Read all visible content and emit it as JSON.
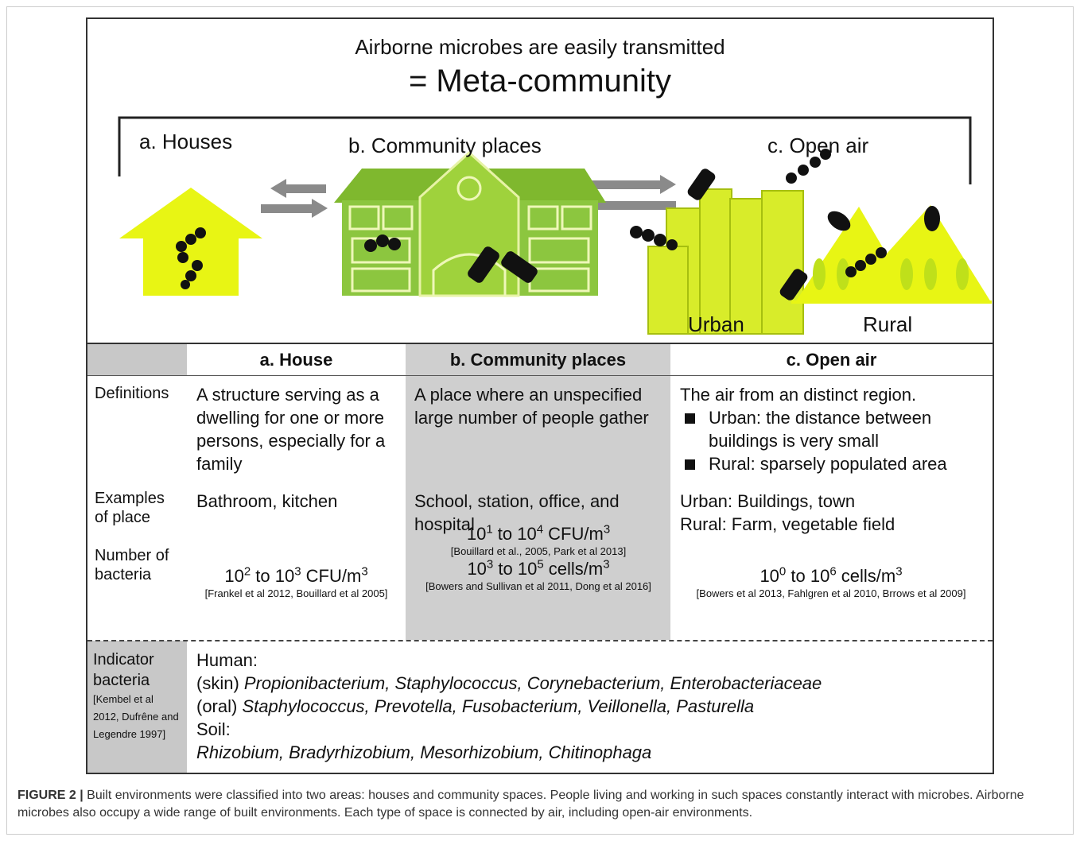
{
  "figure": {
    "title": "Airborne microbes are easily transmitted",
    "subtitle": "= Meta-community",
    "zones": [
      "a. Houses",
      "b. Community places",
      "c. Open air"
    ],
    "open_air_subzones": [
      "Urban",
      "Rural"
    ]
  },
  "table": {
    "header": [
      "a. House",
      "b. Community places",
      "c. Open air"
    ],
    "definitions": {
      "label": "Definitions",
      "house": "A structure serving as a dwelling for one or more persons, especially for a family",
      "community": "A place where an unspecified large number of people gather",
      "open_air": {
        "text": "The air from an distinct region.",
        "bullets": [
          "Urban: the distance between buildings is very small",
          "Rural: sparsely populated area"
        ]
      }
    },
    "examples": {
      "label": "Examples of place",
      "house": "Bathroom, kitchen",
      "community": "School, station, office, and hospital",
      "open_air": [
        "Urban: Buildings, town",
        "Rural: Farm, vegetable field"
      ]
    },
    "bacteria": {
      "label": "Number of bacteria",
      "house": {
        "parts": [
          "10",
          "2",
          " to 10",
          "3",
          " CFU/m",
          "3"
        ],
        "ref": "[Frankel et al 2012, Bouillard et al 2005]"
      },
      "community": [
        {
          "parts": [
            "10",
            "1",
            " to 10",
            "4",
            " CFU/m",
            "3"
          ],
          "ref": "[Bouillard et al., 2005, Park et al 2013]"
        },
        {
          "parts": [
            "10",
            "3",
            " to 10",
            "5",
            " cells/m",
            "3"
          ],
          "ref": "[Bowers and Sullivan et al 2011, Dong et al 2016]"
        }
      ],
      "open_air": {
        "parts": [
          "10",
          "0",
          " to 10",
          "6",
          "  cells/m",
          "3"
        ],
        "ref": "[Bowers et al 2013, Fahlgren et al 2010, Brrows et al 2009]"
      }
    },
    "indicator": {
      "label": "Indicator bacteria",
      "ref": "[Kembel et al 2012, Dufrêne and Legendre 1997]",
      "lines": [
        {
          "text": "Human:"
        },
        {
          "prefix": "(skin)",
          "taxa": "Propionibacterium, Staphylococcus, Corynebacterium, Enterobacteriaceae"
        },
        {
          "prefix": "(oral)",
          "taxa": "Staphylococcus, Prevotella, Fusobacterium, Veillonella, Pasturella"
        },
        {
          "text": "Soil:"
        },
        {
          "taxa": "Rhizobium, Bradyrhizobium, Mesorhizobium, Chitinophaga"
        }
      ]
    }
  },
  "caption": {
    "label": "FIGURE 2 |",
    "text": "Built environments were classified into two areas: houses and community spaces. People living and working in such spaces constantly interact with microbes. Airborne microbes also occupy a wide range of built environments. Each type of space is connected by air, including open-air environments."
  }
}
